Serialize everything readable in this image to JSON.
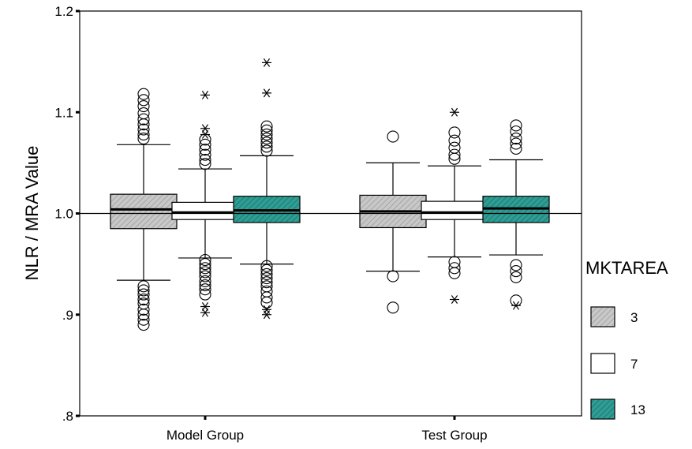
{
  "chart_data": {
    "type": "box",
    "title": "",
    "ylabel": "NLR / MRA Value",
    "xlabel": "",
    "ylim": [
      0.8,
      1.2
    ],
    "yticks": [
      {
        "value": 0.8,
        "label": ".8"
      },
      {
        "value": 0.9,
        "label": ".9"
      },
      {
        "value": 1.0,
        "label": "1.0"
      },
      {
        "value": 1.1,
        "label": "1.1"
      },
      {
        "value": 1.2,
        "label": "1.2"
      }
    ],
    "reference_line": 1.0,
    "categories": [
      "Model Group",
      "Test Group"
    ],
    "legend": {
      "title": "MKTAREA",
      "placement": "right",
      "items": [
        {
          "label": "3",
          "fill": "#c8c8c8",
          "hatch": true
        },
        {
          "label": "7",
          "fill": "#ffffff",
          "hatch": false
        },
        {
          "label": "13",
          "fill": "#2e9e95",
          "hatch": true
        }
      ]
    },
    "series": [
      {
        "name": "3",
        "boxes": [
          {
            "category": "Model Group",
            "whisker_low": 0.934,
            "q1": 0.985,
            "median": 1.004,
            "q3": 1.019,
            "whisker_high": 1.068,
            "outliers": [
              1.118,
              1.112,
              1.106,
              1.099,
              1.093,
              1.088,
              1.083,
              1.078,
              1.074,
              0.928,
              0.924,
              0.92,
              0.915,
              0.911,
              0.905,
              0.9,
              0.895,
              0.89
            ],
            "extremes": []
          },
          {
            "category": "Test Group",
            "whisker_low": 0.943,
            "q1": 0.986,
            "median": 1.002,
            "q3": 1.018,
            "whisker_high": 1.05,
            "outliers": [
              1.076,
              0.938,
              0.907
            ],
            "extremes": []
          }
        ]
      },
      {
        "name": "7",
        "boxes": [
          {
            "category": "Model Group",
            "whisker_low": 0.956,
            "q1": 0.994,
            "median": 1.001,
            "q3": 1.011,
            "whisker_high": 1.044,
            "outliers": [
              1.073,
              1.068,
              1.063,
              1.058,
              1.053,
              1.049,
              0.954,
              0.95,
              0.946,
              0.942,
              0.938,
              0.933,
              0.929,
              0.925,
              0.92
            ],
            "extremes": [
              1.117,
              1.084,
              1.078,
              0.908,
              0.902
            ]
          },
          {
            "category": "Test Group",
            "whisker_low": 0.957,
            "q1": 0.994,
            "median": 1.001,
            "q3": 1.012,
            "whisker_high": 1.047,
            "outliers": [
              1.08,
              1.072,
              1.065,
              1.058,
              1.054,
              0.952,
              0.946,
              0.941
            ],
            "extremes": [
              1.1,
              0.915
            ]
          }
        ]
      },
      {
        "name": "13",
        "boxes": [
          {
            "category": "Model Group",
            "whisker_low": 0.95,
            "q1": 0.991,
            "median": 1.003,
            "q3": 1.017,
            "whisker_high": 1.057,
            "outliers": [
              1.086,
              1.082,
              1.078,
              1.074,
              1.07,
              1.066,
              1.062,
              0.948,
              0.944,
              0.94,
              0.936,
              0.932,
              0.928,
              0.923,
              0.917,
              0.912
            ],
            "extremes": [
              1.149,
              1.119,
              0.905,
              0.9
            ]
          },
          {
            "category": "Test Group",
            "whisker_low": 0.959,
            "q1": 0.991,
            "median": 1.005,
            "q3": 1.017,
            "whisker_high": 1.053,
            "outliers": [
              1.087,
              1.081,
              1.074,
              1.069,
              1.064,
              0.949,
              0.943,
              0.937,
              0.914
            ],
            "extremes": [
              0.909
            ]
          }
        ]
      }
    ]
  }
}
